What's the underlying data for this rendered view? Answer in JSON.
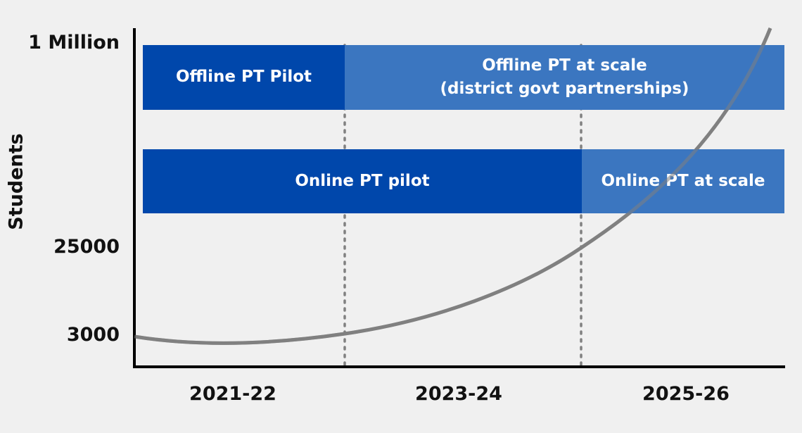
{
  "chart_data": {
    "type": "line",
    "ylabel": "Students",
    "y_ticks": [
      "1 Million",
      "25000",
      "3000"
    ],
    "x_ticks": [
      "2021-22",
      "2023-24",
      "2025-26"
    ],
    "series": [
      {
        "x": [
          "start",
          "2021-22",
          "2023-24 boundary",
          "2025-26 boundary",
          "end"
        ],
        "values": [
          3000,
          2900,
          3000,
          25000,
          1000000
        ]
      }
    ],
    "bars": [
      {
        "label": "Offline PT Pilot",
        "period": "2021-22 to 2023-24",
        "color": "#0047ab"
      },
      {
        "label": "Offline PT at scale\n(district govt partnerships)",
        "period": "2023-24 onward",
        "color": "#3b76c0"
      },
      {
        "label": "Online PT pilot",
        "period": "2021-22 to 2025-26",
        "color": "#0047ab"
      },
      {
        "label": "Online PT at scale",
        "period": "2025-26 onward",
        "color": "#3b76c0"
      }
    ],
    "colors": {
      "curve": "#808080",
      "axis": "#000000",
      "divider": "#808080"
    }
  }
}
